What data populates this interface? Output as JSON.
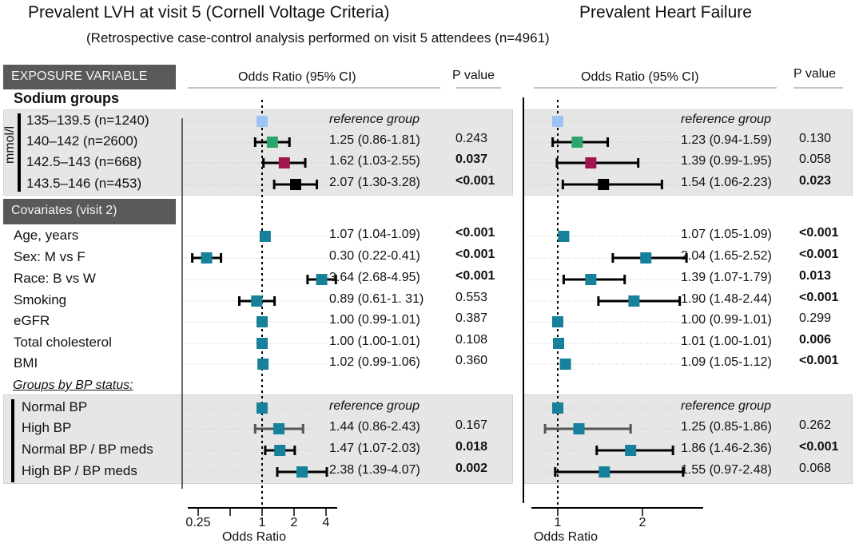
{
  "titles": {
    "left": "Prevalent LVH at visit 5 (Cornell Voltage Criteria)",
    "right": "Prevalent Heart Failure",
    "subtitle": "(Retrospective case-control analysis performed on visit 5 attendees (n=4961)"
  },
  "headers": {
    "exposure": "EXPOSURE VARIABLE",
    "or_ci": "Odds Ratio (95% CI)",
    "p": "P value",
    "sodium": "Sodium groups",
    "unit": "mmol/l",
    "covariates": "Covariates (visit 2)",
    "bp_groups": "Groups by BP status:"
  },
  "colors": {
    "ref": "#9dc3f4",
    "green": "#2ba56b",
    "magenta": "#a1164f",
    "black": "#000000",
    "teal": "#17809a",
    "gray": "#555555"
  },
  "chart_data": {
    "type": "forest",
    "rows": [
      "135–139.5 (n=1240)",
      "140–142 (n=2600)",
      "142.5–143 (n=668)",
      "143.5–146 (n=453)",
      "Age, years",
      "Sex: M vs F",
      "Race: B vs W",
      "Smoking",
      "eGFR",
      "Total cholesterol",
      "BMI",
      "Normal BP",
      "High BP",
      "Normal BP / BP meds",
      "High BP / BP meds"
    ],
    "panels": [
      {
        "title": "Prevalent LVH at visit 5 (Cornell Voltage Criteria)",
        "xlabel": "Odds Ratio",
        "scale": "log",
        "ticks": [
          0.25,
          0.5,
          1,
          2,
          4
        ],
        "tick_labels": [
          "0.25",
          "",
          "1",
          "2",
          "4"
        ],
        "xlim": [
          0.2,
          5
        ],
        "data": [
          {
            "or": 1,
            "ref": true,
            "text": "reference group",
            "p": "",
            "color": "ref"
          },
          {
            "or": 1.25,
            "lo": 0.86,
            "hi": 1.81,
            "text": "1.25 (0.86-1.81)",
            "p": "0.243",
            "bold": false,
            "color": "green"
          },
          {
            "or": 1.62,
            "lo": 1.03,
            "hi": 2.55,
            "text": "1.62 (1.03-2.55)",
            "p": "0.037",
            "bold": true,
            "color": "magenta"
          },
          {
            "or": 2.07,
            "lo": 1.3,
            "hi": 3.28,
            "text": "2.07 (1.30-3.28)",
            "p": "<0.001",
            "bold": true,
            "color": "black"
          },
          {
            "or": 1.07,
            "lo": 1.04,
            "hi": 1.09,
            "text": "1.07 (1.04-1.09)",
            "p": "<0.001",
            "bold": true,
            "color": "teal"
          },
          {
            "or": 0.3,
            "lo": 0.22,
            "hi": 0.41,
            "text": "0.30 (0.22-0.41)",
            "p": "<0.001",
            "bold": true,
            "color": "teal"
          },
          {
            "or": 3.64,
            "lo": 2.68,
            "hi": 4.95,
            "text": "3.64 (2.68-4.95)",
            "p": "<0.001",
            "bold": true,
            "color": "teal"
          },
          {
            "or": 0.89,
            "lo": 0.61,
            "hi": 1.31,
            "text": "0.89 (0.61-1. 31)",
            "p": "0.553",
            "bold": false,
            "color": "teal"
          },
          {
            "or": 1.0,
            "lo": 0.99,
            "hi": 1.01,
            "text": "1.00 (0.99-1.01)",
            "p": "0.387",
            "bold": false,
            "color": "teal"
          },
          {
            "or": 1.0,
            "lo": 1.0,
            "hi": 1.01,
            "text": "1.00 (1.00-1.01)",
            "p": "0.108",
            "bold": false,
            "color": "teal"
          },
          {
            "or": 1.02,
            "lo": 0.99,
            "hi": 1.06,
            "text": "1.02 (0.99-1.06)",
            "p": "0.360",
            "bold": false,
            "color": "teal"
          },
          {
            "or": 1,
            "ref": true,
            "text": "reference group",
            "p": "",
            "color": "teal"
          },
          {
            "or": 1.44,
            "lo": 0.86,
            "hi": 2.43,
            "text": "1.44 (0.86-2.43)",
            "p": "0.167",
            "bold": false,
            "color": "teal",
            "ci_color": "gray"
          },
          {
            "or": 1.47,
            "lo": 1.07,
            "hi": 2.03,
            "text": "1.47 (1.07-2.03)",
            "p": "0.018",
            "bold": true,
            "color": "teal"
          },
          {
            "or": 2.38,
            "lo": 1.39,
            "hi": 4.07,
            "text": "2.38 (1.39-4.07)",
            "p": "0.002",
            "bold": true,
            "color": "teal"
          }
        ]
      },
      {
        "title": "Prevalent Heart Failure",
        "xlabel": "Odds Ratio",
        "scale": "linear",
        "ticks": [
          1,
          2
        ],
        "tick_labels": [
          "1",
          "2"
        ],
        "xlim": [
          0.7,
          2.7
        ],
        "data": [
          {
            "or": 1,
            "ref": true,
            "text": "reference group",
            "p": "",
            "color": "ref"
          },
          {
            "or": 1.23,
            "lo": 0.94,
            "hi": 1.59,
            "text": "1.23 (0.94-1.59)",
            "p": "0.130",
            "bold": false,
            "color": "green"
          },
          {
            "or": 1.39,
            "lo": 0.99,
            "hi": 1.95,
            "text": "1.39 (0.99-1.95)",
            "p": "0.058",
            "bold": false,
            "color": "magenta"
          },
          {
            "or": 1.54,
            "lo": 1.06,
            "hi": 2.23,
            "text": "1.54 (1.06-2.23)",
            "p": "0.023",
            "bold": true,
            "color": "black"
          },
          {
            "or": 1.07,
            "lo": 1.05,
            "hi": 1.09,
            "text": "1.07 (1.05-1.09)",
            "p": "<0.001",
            "bold": true,
            "color": "teal"
          },
          {
            "or": 2.04,
            "lo": 1.65,
            "hi": 2.52,
            "text": "2.04 (1.65-2.52)",
            "p": "<0.001",
            "bold": true,
            "color": "teal"
          },
          {
            "or": 1.39,
            "lo": 1.07,
            "hi": 1.79,
            "text": "1.39 (1.07-1.79)",
            "p": "0.013",
            "bold": true,
            "color": "teal"
          },
          {
            "or": 1.9,
            "lo": 1.48,
            "hi": 2.44,
            "text": "1.90 (1.48-2.44)",
            "p": "<0.001",
            "bold": true,
            "color": "teal"
          },
          {
            "or": 1.0,
            "lo": 0.99,
            "hi": 1.01,
            "text": "1.00 (0.99-1.01)",
            "p": "0.299",
            "bold": false,
            "color": "teal"
          },
          {
            "or": 1.01,
            "lo": 1.0,
            "hi": 1.01,
            "text": "1.01 (1.00-1.01)",
            "p": "0.006",
            "bold": true,
            "color": "teal"
          },
          {
            "or": 1.09,
            "lo": 1.05,
            "hi": 1.12,
            "text": "1.09 (1.05-1.12)",
            "p": "<0.001",
            "bold": true,
            "color": "teal"
          },
          {
            "or": 1,
            "ref": true,
            "text": "reference group",
            "p": "",
            "color": "teal"
          },
          {
            "or": 1.25,
            "lo": 0.85,
            "hi": 1.86,
            "text": "1.25 (0.85-1.86)",
            "p": "0.262",
            "bold": false,
            "color": "teal",
            "ci_color": "gray"
          },
          {
            "or": 1.86,
            "lo": 1.46,
            "hi": 2.36,
            "text": "1.86 (1.46-2.36)",
            "p": "<0.001",
            "bold": true,
            "color": "teal"
          },
          {
            "or": 1.55,
            "lo": 0.97,
            "hi": 2.48,
            "text": "1.55 (0.97-2.48)",
            "p": "0.068",
            "bold": false,
            "color": "teal"
          }
        ]
      }
    ]
  }
}
